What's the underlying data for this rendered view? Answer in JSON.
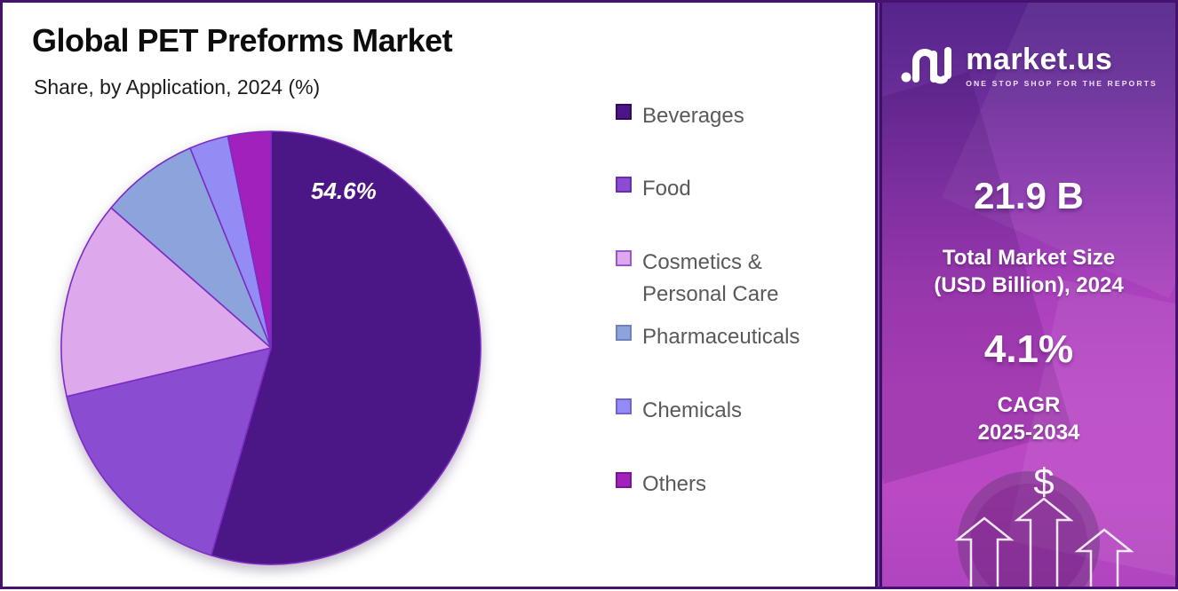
{
  "header": {
    "title": "Global PET Preforms Market",
    "subtitle": "Share, by Application, 2024 (%)"
  },
  "chart_data": {
    "type": "pie",
    "title": "Global PET Preforms Market",
    "subtitle": "Share, by Application, 2024 (%)",
    "unit": "%",
    "start_angle_deg": 0,
    "direction": "clockwise",
    "labels": [
      "Beverages",
      "Food",
      "Cosmetics & Personal Care",
      "Pharmaceuticals",
      "Chemicals",
      "Others"
    ],
    "values": [
      54.6,
      16.8,
      14.8,
      7.5,
      3.0,
      3.3
    ],
    "colors": [
      "#4b1685",
      "#8a4cd0",
      "#dda8ec",
      "#8ca4db",
      "#948cf5",
      "#a021bb"
    ],
    "stroke_color": "#7c2cc4",
    "data_label": {
      "text": "54.6%",
      "slice": "Beverages"
    },
    "legend_position": "right"
  },
  "legend": {
    "items": [
      {
        "label": "Beverages",
        "color": "#4b1685",
        "border": "#35085f"
      },
      {
        "label": "Food",
        "color": "#8a4cd0",
        "border": "#6d2cb0"
      },
      {
        "label": "Cosmetics &\nPersonal Care",
        "color": "#dda8ec",
        "border": "#9a55cc"
      },
      {
        "label": "Pharmaceuticals",
        "color": "#8ca4db",
        "border": "#6f7fc2"
      },
      {
        "label": "Chemicals",
        "color": "#948cf5",
        "border": "#6f63d6"
      },
      {
        "label": "Others",
        "color": "#a021bb",
        "border": "#7d1396"
      }
    ]
  },
  "sidebar": {
    "logo": {
      "brand": "market.us",
      "tagline": "ONE STOP SHOP FOR THE REPORTS"
    },
    "stats": [
      {
        "value": "21.9 B",
        "label": "Total Market Size\n(USD Billion), 2024"
      },
      {
        "value": "4.1%",
        "label": "CAGR\n2025-2034"
      }
    ],
    "dollar_symbol": "$"
  },
  "colors": {
    "frame_border": "#471170",
    "sidebar_top": "#55258b",
    "sidebar_bottom": "#bb49c4",
    "legend_text": "#58595b"
  }
}
